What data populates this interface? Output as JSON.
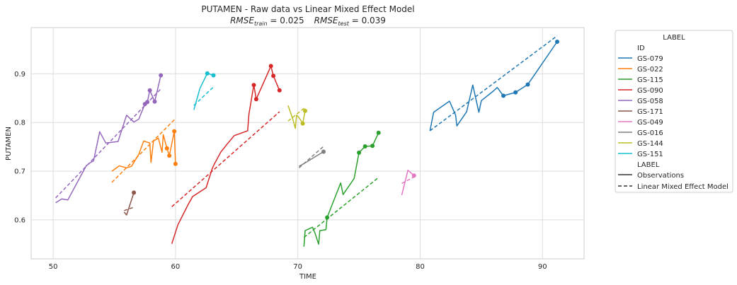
{
  "chart_data": {
    "type": "line",
    "title": "PUTAMEN - Raw data vs Linear Mixed Effect Model",
    "subtitle_parts": {
      "train_prefix": "RMSE",
      "train_sub": "train",
      "train_value": " = 0.025",
      "test_prefix": "RMSE",
      "test_sub": "test",
      "test_value": " = 0.039"
    },
    "xlabel": "TIME",
    "ylabel": "PUTAMEN",
    "xlim": [
      48.2,
      93.4
    ],
    "ylim": [
      0.52,
      0.995
    ],
    "xticks": [
      50,
      60,
      70,
      80,
      90
    ],
    "yticks": [
      0.6,
      0.7,
      0.8,
      0.9
    ],
    "xtick_labels": [
      "50",
      "60",
      "70",
      "80",
      "90"
    ],
    "ytick_labels": [
      "0.6",
      "0.7",
      "0.8",
      "0.9"
    ],
    "grid": true,
    "legend": {
      "placement": "outside-right",
      "title": "LABEL",
      "id_header": "ID",
      "style_header": "LABEL",
      "style_entries": [
        "Observations",
        "Linear Mixed Effect Model"
      ]
    },
    "series": [
      {
        "name": "GS-079",
        "color": "#1f77b4",
        "observations": [
          [
            80.8,
            0.783
          ],
          [
            81.1,
            0.821
          ],
          [
            82.4,
            0.844
          ],
          [
            82.9,
            0.815
          ],
          [
            83.0,
            0.793
          ],
          [
            83.8,
            0.822
          ],
          [
            84.3,
            0.877
          ],
          [
            84.8,
            0.821
          ],
          [
            85.0,
            0.845
          ],
          [
            86.0,
            0.865
          ],
          [
            86.3,
            0.872
          ],
          [
            86.8,
            0.855
          ],
          [
            87.8,
            0.862
          ],
          [
            88.8,
            0.878
          ],
          [
            91.2,
            0.966
          ]
        ],
        "test_points": [
          [
            86.8,
            0.855
          ],
          [
            87.8,
            0.862
          ],
          [
            88.8,
            0.878
          ],
          [
            91.2,
            0.966
          ]
        ],
        "model": [
          [
            80.8,
            0.783
          ],
          [
            91.2,
            0.978
          ]
        ]
      },
      {
        "name": "GS-022",
        "color": "#ff7f0e",
        "observations": [
          [
            54.8,
            0.7
          ],
          [
            55.4,
            0.711
          ],
          [
            56.0,
            0.707
          ],
          [
            56.4,
            0.71
          ],
          [
            57.0,
            0.735
          ],
          [
            57.4,
            0.762
          ],
          [
            57.9,
            0.758
          ],
          [
            58.0,
            0.718
          ],
          [
            58.2,
            0.762
          ],
          [
            58.6,
            0.768
          ],
          [
            58.9,
            0.739
          ],
          [
            59.0,
            0.775
          ],
          [
            59.3,
            0.747
          ],
          [
            59.5,
            0.732
          ],
          [
            59.9,
            0.782
          ],
          [
            60.0,
            0.715
          ]
        ],
        "test_points": [
          [
            59.3,
            0.747
          ],
          [
            59.5,
            0.732
          ],
          [
            59.9,
            0.782
          ],
          [
            60.0,
            0.715
          ]
        ],
        "model": [
          [
            54.8,
            0.677
          ],
          [
            60.0,
            0.808
          ]
        ]
      },
      {
        "name": "GS-115",
        "color": "#2ca02c",
        "observations": [
          [
            70.5,
            0.545
          ],
          [
            70.6,
            0.578
          ],
          [
            71.2,
            0.585
          ],
          [
            71.4,
            0.573
          ],
          [
            71.7,
            0.55
          ],
          [
            71.8,
            0.578
          ],
          [
            72.3,
            0.58
          ],
          [
            72.4,
            0.605
          ],
          [
            73.5,
            0.676
          ],
          [
            73.7,
            0.652
          ],
          [
            74.6,
            0.685
          ],
          [
            75.0,
            0.738
          ],
          [
            75.5,
            0.751
          ],
          [
            76.1,
            0.752
          ],
          [
            76.6,
            0.779
          ]
        ],
        "test_points": [
          [
            72.4,
            0.605
          ],
          [
            75.0,
            0.738
          ],
          [
            75.5,
            0.751
          ],
          [
            76.1,
            0.752
          ],
          [
            76.6,
            0.779
          ]
        ],
        "model": [
          [
            70.5,
            0.564
          ],
          [
            76.6,
            0.687
          ]
        ]
      },
      {
        "name": "GS-090",
        "color": "#d62728",
        "observations": [
          [
            59.7,
            0.551
          ],
          [
            60.2,
            0.59
          ],
          [
            61.0,
            0.63
          ],
          [
            61.4,
            0.648
          ],
          [
            62.5,
            0.666
          ],
          [
            63.0,
            0.705
          ],
          [
            63.2,
            0.716
          ],
          [
            63.7,
            0.739
          ],
          [
            64.2,
            0.755
          ],
          [
            64.8,
            0.773
          ],
          [
            65.9,
            0.783
          ],
          [
            66.0,
            0.817
          ],
          [
            66.4,
            0.877
          ],
          [
            66.6,
            0.848
          ],
          [
            67.8,
            0.916
          ],
          [
            68.0,
            0.896
          ],
          [
            68.5,
            0.866
          ]
        ],
        "test_points": [
          [
            66.4,
            0.877
          ],
          [
            66.6,
            0.848
          ],
          [
            67.8,
            0.916
          ],
          [
            68.0,
            0.896
          ],
          [
            68.5,
            0.866
          ]
        ],
        "model": [
          [
            59.7,
            0.627
          ],
          [
            68.5,
            0.822
          ]
        ]
      },
      {
        "name": "GS-058",
        "color": "#9467bd",
        "observations": [
          [
            50.2,
            0.635
          ],
          [
            50.7,
            0.643
          ],
          [
            51.2,
            0.641
          ],
          [
            52.7,
            0.711
          ],
          [
            53.0,
            0.717
          ],
          [
            53.3,
            0.721
          ],
          [
            53.8,
            0.781
          ],
          [
            54.3,
            0.758
          ],
          [
            55.3,
            0.761
          ],
          [
            56.0,
            0.815
          ],
          [
            56.6,
            0.801
          ],
          [
            57.0,
            0.807
          ],
          [
            57.5,
            0.838
          ],
          [
            57.7,
            0.842
          ],
          [
            57.9,
            0.866
          ],
          [
            58.3,
            0.843
          ],
          [
            58.8,
            0.897
          ]
        ],
        "test_points": [
          [
            57.5,
            0.838
          ],
          [
            57.7,
            0.842
          ],
          [
            57.9,
            0.866
          ],
          [
            58.3,
            0.843
          ],
          [
            58.8,
            0.897
          ]
        ],
        "model": [
          [
            50.2,
            0.645
          ],
          [
            58.8,
            0.869
          ]
        ]
      },
      {
        "name": "GS-171",
        "color": "#8c564b",
        "observations": [
          [
            55.8,
            0.616
          ],
          [
            56.0,
            0.61
          ],
          [
            56.6,
            0.656
          ]
        ],
        "test_points": [
          [
            56.6,
            0.656
          ]
        ],
        "model": [
          [
            55.8,
            0.619
          ],
          [
            56.6,
            0.626
          ]
        ]
      },
      {
        "name": "GS-049",
        "color": "#e377c2",
        "observations": [
          [
            78.5,
            0.651
          ],
          [
            79.0,
            0.702
          ],
          [
            79.5,
            0.691
          ]
        ],
        "test_points": [
          [
            79.5,
            0.691
          ]
        ],
        "model": [
          [
            78.5,
            0.675
          ],
          [
            79.5,
            0.688
          ]
        ]
      },
      {
        "name": "GS-016",
        "color": "#7f7f7f",
        "observations": [
          [
            70.1,
            0.71
          ],
          [
            70.6,
            0.717
          ],
          [
            71.5,
            0.731
          ],
          [
            72.1,
            0.74
          ]
        ],
        "test_points": [
          [
            72.1,
            0.74
          ]
        ],
        "model": [
          [
            70.1,
            0.707
          ],
          [
            72.1,
            0.751
          ]
        ]
      },
      {
        "name": "GS-144",
        "color": "#bcbd22",
        "observations": [
          [
            69.2,
            0.835
          ],
          [
            69.6,
            0.806
          ],
          [
            69.8,
            0.788
          ],
          [
            69.9,
            0.815
          ],
          [
            70.1,
            0.81
          ],
          [
            70.4,
            0.798
          ],
          [
            70.6,
            0.824
          ]
        ],
        "test_points": [
          [
            70.4,
            0.798
          ],
          [
            70.6,
            0.824
          ]
        ],
        "model": [
          [
            69.2,
            0.803
          ],
          [
            70.6,
            0.831
          ]
        ]
      },
      {
        "name": "GS-151",
        "color": "#17becf",
        "observations": [
          [
            61.5,
            0.826
          ],
          [
            62.0,
            0.87
          ],
          [
            62.6,
            0.901
          ],
          [
            63.1,
            0.897
          ]
        ],
        "test_points": [
          [
            62.6,
            0.901
          ],
          [
            63.1,
            0.897
          ]
        ],
        "model": [
          [
            61.5,
            0.835
          ],
          [
            63.1,
            0.873
          ]
        ]
      }
    ]
  }
}
